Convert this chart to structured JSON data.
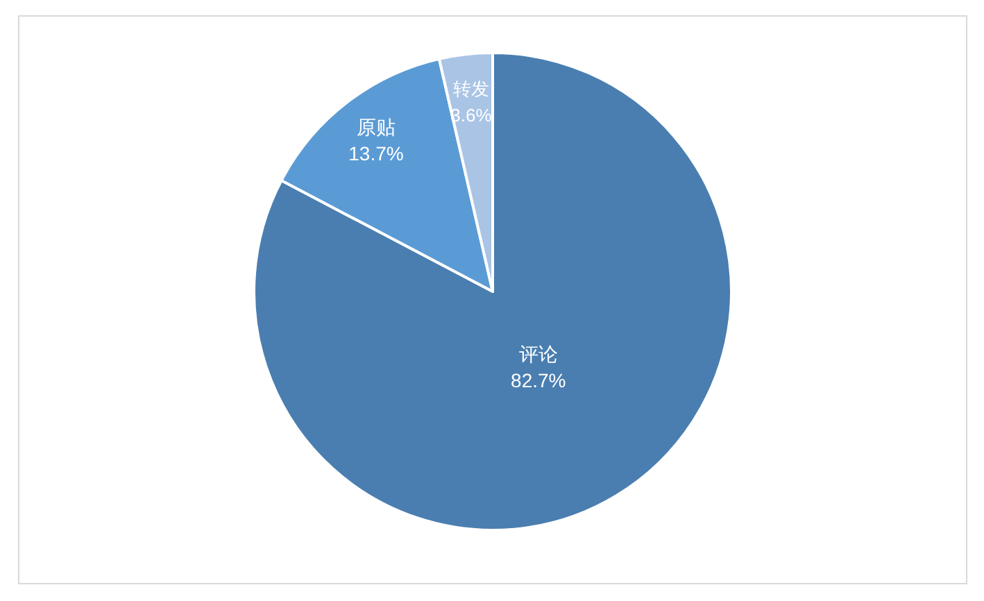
{
  "chart_data": {
    "type": "pie",
    "categories": [
      "评论",
      "原贴",
      "转发"
    ],
    "values": [
      82.7,
      13.7,
      3.6
    ],
    "value_labels": [
      "82.7%",
      "13.7%",
      "3.6%"
    ],
    "colors": [
      "#4a7eb0",
      "#5b9bd5",
      "#a9c4e5"
    ]
  }
}
